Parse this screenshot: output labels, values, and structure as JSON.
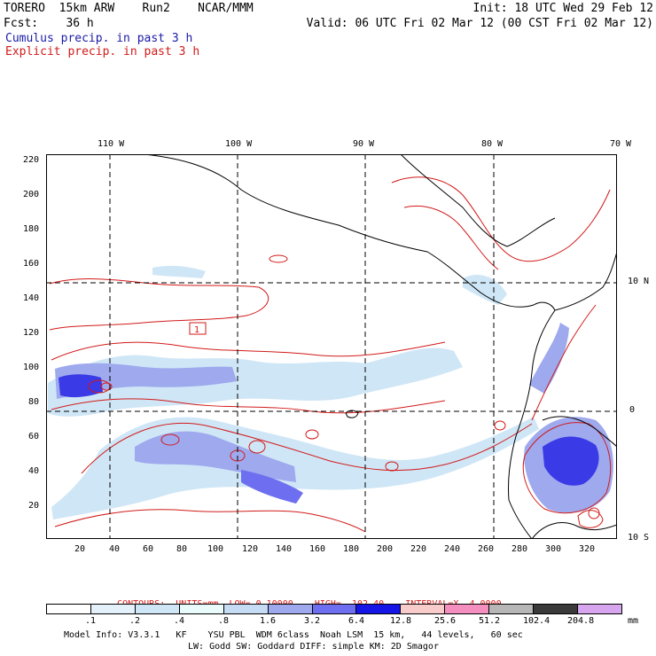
{
  "header": {
    "model_line": "TORERO  15km ARW    Run2    NCAR/MMM",
    "forecast_line": "Fcst:    36 h",
    "init": "Init: 18 UTC Wed 29 Feb 12",
    "valid": "Valid: 06 UTC Fri 02 Mar 12 (00 CST Fri 02 Mar 12)",
    "cumulus_label": "Cumulus precip. in past 3 h",
    "explicit_label": "Explicit precip. in past 3 h"
  },
  "map": {
    "lon_labels": [
      "110 W",
      "100 W",
      "90 W",
      "80 W",
      "70 W"
    ],
    "lat_labels": [
      "10 N",
      "0",
      "10 S"
    ],
    "y_ticks": [
      "220",
      "200",
      "180",
      "160",
      "140",
      "120",
      "100",
      "80",
      "60",
      "40",
      "20"
    ],
    "x_ticks": [
      "20",
      "40",
      "60",
      "80",
      "100",
      "120",
      "140",
      "160",
      "180",
      "200",
      "220",
      "240",
      "260",
      "280",
      "300",
      "320"
    ],
    "box_label": "1",
    "colors": {
      "cumulus": "#1a1aa8",
      "explicit": "#d21a1a",
      "coast": "#000000",
      "grid": "#000000"
    }
  },
  "contours_info": {
    "label": "CONTOURS:",
    "units": "UNITS=mm",
    "low": "LOW= 0.10000",
    "high": "HIGH=  102.40",
    "interval": "INTERVAL=X  4.0000"
  },
  "colorbar": {
    "labels": [
      ".1",
      ".2",
      ".4",
      ".8",
      "1.6",
      "3.2",
      "6.4",
      "12.8",
      "25.6",
      "51.2",
      "102.4",
      "204.8"
    ],
    "unit": "mm",
    "colors": [
      "#ffffff",
      "#e4f0fa",
      "#cfe6f6",
      "#e9fbfb",
      "#c5dcf4",
      "#9ea9ee",
      "#6e6ff0",
      "#1515e8",
      "#f9cccc",
      "#f58fbf",
      "#b7b7b7",
      "#3a3a3a",
      "#d8a6ee"
    ]
  },
  "footer": {
    "line1": "Model Info: V3.3.1   KF    YSU PBL  WDM 6class  Noah LSM  15 km,   44 levels,   60 sec",
    "line2": "LW: Godd SW: Goddard DIFF: simple KM: 2D Smagor"
  }
}
